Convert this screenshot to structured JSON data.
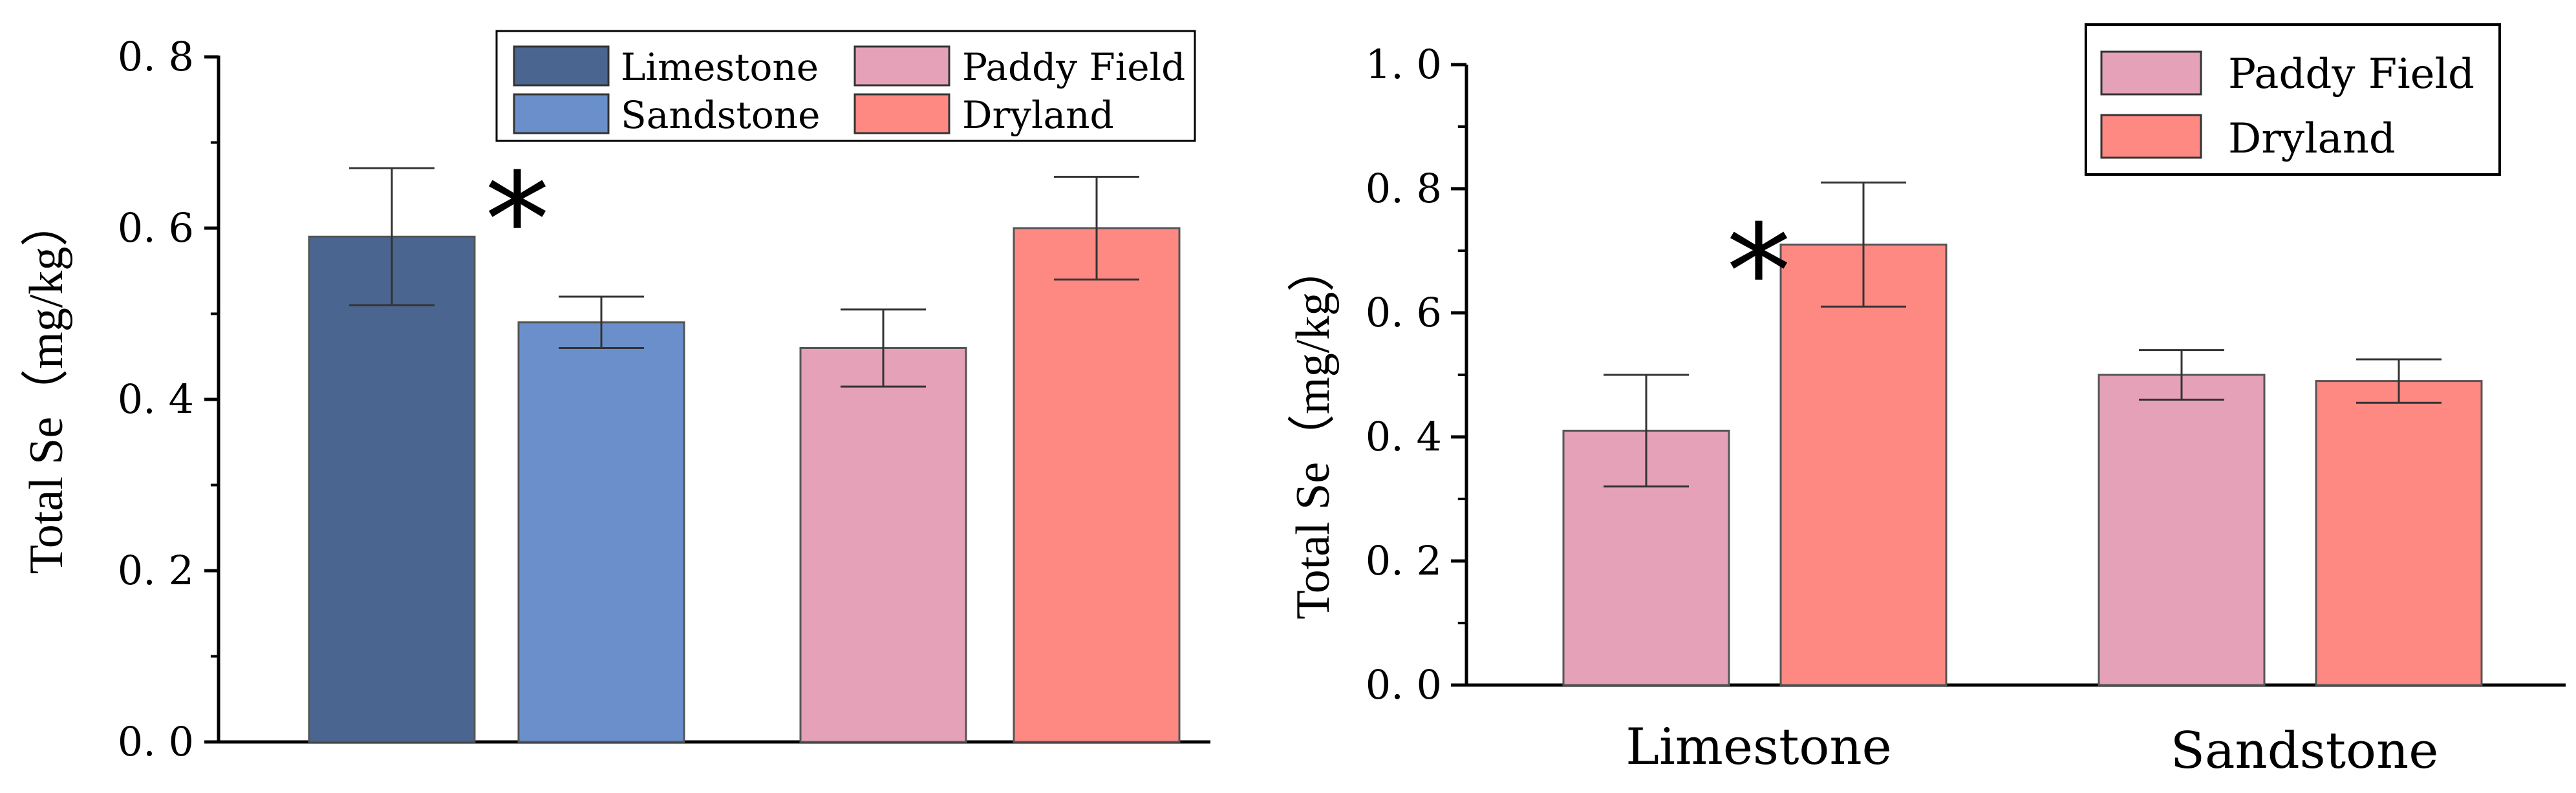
{
  "chart_data": [
    {
      "type": "bar",
      "ylabel": "Total Se（mg/kg）",
      "ylim": [
        0,
        0.8
      ],
      "yticks": [
        "0. 0",
        "0. 2",
        "0. 4",
        "0. 6",
        "0. 8"
      ],
      "ytick_values": [
        0,
        0.2,
        0.4,
        0.6,
        0.8
      ],
      "xlabel": "",
      "categories": [
        "Limestone",
        "Sandstone",
        "Paddy Field",
        "Dryland"
      ],
      "values": [
        0.59,
        0.49,
        0.46,
        0.6
      ],
      "errors": [
        0.08,
        0.03,
        0.045,
        0.06
      ],
      "colors": [
        "#4a6690",
        "#6a8fcb",
        "#e4a1b8",
        "#fe8882"
      ],
      "legend": {
        "position": "top-right",
        "entries": [
          {
            "label": "Limestone",
            "color": "#4a6690"
          },
          {
            "label": "Paddy Field",
            "color": "#e4a1b8"
          },
          {
            "label": "Sandstone",
            "color": "#6a8fcb"
          },
          {
            "label": "Dryland",
            "color": "#fe8882"
          }
        ]
      },
      "annotation": "*"
    },
    {
      "type": "bar",
      "ylabel": "Total Se（mg/kg）",
      "ylim": [
        0,
        1.0
      ],
      "yticks": [
        "0. 0",
        "0. 2",
        "0. 4",
        "0. 6",
        "0. 8",
        "1. 0"
      ],
      "ytick_values": [
        0,
        0.2,
        0.4,
        0.6,
        0.8,
        1.0
      ],
      "xlabel": "",
      "categories": [
        "Limestone",
        "Sandstone"
      ],
      "series": [
        {
          "name": "Paddy Field",
          "color": "#e4a1b8",
          "values": [
            0.41,
            0.5
          ],
          "errors": [
            0.09,
            0.04
          ]
        },
        {
          "name": "Dryland",
          "color": "#fe8882",
          "values": [
            0.71,
            0.49
          ],
          "errors": [
            0.1,
            0.035
          ]
        }
      ],
      "legend": {
        "position": "top-right",
        "entries": [
          {
            "label": "Paddy Field",
            "color": "#e4a1b8"
          },
          {
            "label": "Dryland",
            "color": "#fe8882"
          }
        ]
      },
      "annotation": "*"
    }
  ]
}
